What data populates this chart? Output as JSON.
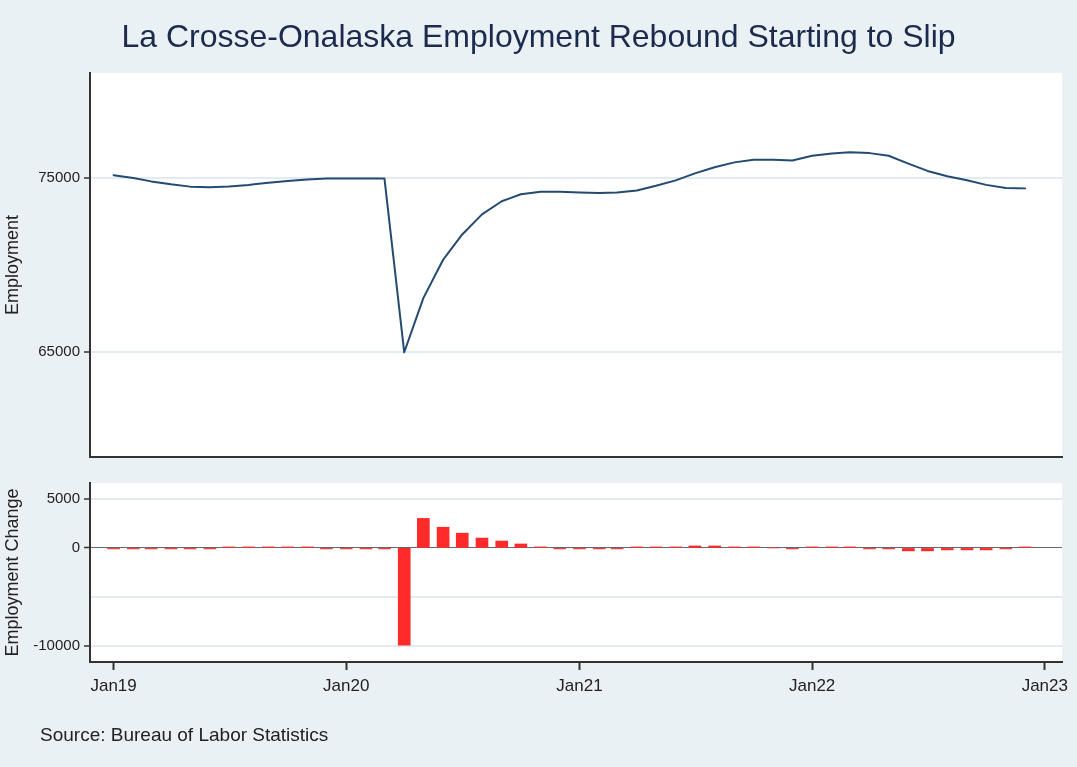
{
  "chart_data": [
    {
      "type": "line",
      "title": "La Crosse-Onalaska Employment Rebound Starting to Slip",
      "ylabel": "Employment",
      "tick_labels": "y",
      "grid": "y",
      "x": [
        "2019-01",
        "2019-02",
        "2019-03",
        "2019-04",
        "2019-05",
        "2019-06",
        "2019-07",
        "2019-08",
        "2019-09",
        "2019-10",
        "2019-11",
        "2019-12",
        "2020-01",
        "2020-02",
        "2020-03",
        "2020-04",
        "2020-05",
        "2020-06",
        "2020-07",
        "2020-08",
        "2020-09",
        "2020-10",
        "2020-11",
        "2020-12",
        "2021-01",
        "2021-02",
        "2021-03",
        "2021-04",
        "2021-05",
        "2021-06",
        "2021-07",
        "2021-08",
        "2021-09",
        "2021-10",
        "2021-11",
        "2021-12",
        "2022-01",
        "2022-02",
        "2022-03",
        "2022-04",
        "2022-05",
        "2022-06",
        "2022-07",
        "2022-08",
        "2022-09",
        "2022-10",
        "2022-11",
        "2022-12"
      ],
      "xlim": [
        "2018-11-25",
        "2023-01-28"
      ],
      "ylim": [
        59000,
        81000
      ],
      "yticks": [
        65000,
        75000
      ],
      "color": "#234a73",
      "values": [
        75140,
        74990,
        74790,
        74620,
        74490,
        74450,
        74500,
        74590,
        74710,
        74810,
        74900,
        74950,
        74950,
        74950,
        74950,
        65000,
        68100,
        70300,
        71750,
        72900,
        73650,
        74050,
        74200,
        74200,
        74150,
        74120,
        74150,
        74270,
        74540,
        74850,
        75250,
        75600,
        75880,
        76030,
        76030,
        75990,
        76260,
        76390,
        76460,
        76410,
        76260,
        75810,
        75390,
        75080,
        74850,
        74590,
        74410,
        74390
      ]
    },
    {
      "type": "bar",
      "ylabel": "Employment Change",
      "grid": "y",
      "annotations": [
        "Source: Bureau of Labor Statistics"
      ],
      "x": [
        "2019-01",
        "2019-02",
        "2019-03",
        "2019-04",
        "2019-05",
        "2019-06",
        "2019-07",
        "2019-08",
        "2019-09",
        "2019-10",
        "2019-11",
        "2019-12",
        "2020-01",
        "2020-02",
        "2020-03",
        "2020-04",
        "2020-05",
        "2020-06",
        "2020-07",
        "2020-08",
        "2020-09",
        "2020-10",
        "2020-11",
        "2020-12",
        "2021-01",
        "2021-02",
        "2021-03",
        "2021-04",
        "2021-05",
        "2021-06",
        "2021-07",
        "2021-08",
        "2021-09",
        "2021-10",
        "2021-11",
        "2021-12",
        "2022-01",
        "2022-02",
        "2022-03",
        "2022-04",
        "2022-05",
        "2022-06",
        "2022-07",
        "2022-08",
        "2022-09",
        "2022-10",
        "2022-11",
        "2022-12"
      ],
      "xlim": [
        "2018-11-25",
        "2023-01-28"
      ],
      "xticks": [
        {
          "value": "2019-01",
          "label": "Jan19"
        },
        {
          "value": "2020-01",
          "label": "Jan20"
        },
        {
          "value": "2021-01",
          "label": "Jan21"
        },
        {
          "value": "2022-01",
          "label": "Jan22"
        },
        {
          "value": "2023-01",
          "label": "Jan23"
        }
      ],
      "ylim": [
        -11600,
        6600
      ],
      "yticks": [
        -10000,
        {
          "value": -5000,
          "label": null
        },
        0,
        5000
      ],
      "color": "#ff2a2a",
      "values": [
        -100,
        -100,
        -100,
        -100,
        -100,
        -100,
        100,
        100,
        100,
        100,
        100,
        -100,
        -100,
        -100,
        -100,
        -9900,
        3000,
        2100,
        1500,
        1000,
        700,
        400,
        100,
        -100,
        -100,
        -100,
        -100,
        100,
        100,
        100,
        200,
        200,
        100,
        100,
        0,
        -100,
        100,
        100,
        100,
        -100,
        -100,
        -300,
        -300,
        -200,
        -200,
        -200,
        -100,
        100
      ]
    }
  ]
}
